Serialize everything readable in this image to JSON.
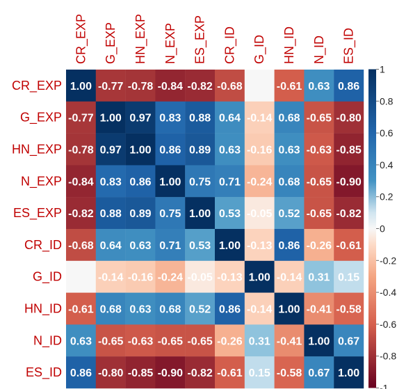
{
  "chart_data": {
    "type": "heatmap",
    "title": "",
    "subtitle": "",
    "xlabel": "",
    "ylabel": "",
    "variables": [
      "CR_EXP",
      "G_EXP",
      "HN_EXP",
      "N_EXP",
      "ES_EXP",
      "CR_ID",
      "G_ID",
      "HN_ID",
      "N_ID",
      "ES_ID"
    ],
    "matrix": [
      [
        1.0,
        -0.77,
        -0.78,
        -0.84,
        -0.82,
        -0.68,
        0.0,
        -0.61,
        0.63,
        0.86
      ],
      [
        -0.77,
        1.0,
        0.97,
        0.83,
        0.88,
        0.64,
        -0.14,
        0.68,
        -0.65,
        -0.8
      ],
      [
        -0.78,
        0.97,
        1.0,
        0.86,
        0.89,
        0.63,
        -0.16,
        0.63,
        -0.63,
        -0.85
      ],
      [
        -0.84,
        0.83,
        0.86,
        1.0,
        0.75,
        0.71,
        -0.24,
        0.68,
        -0.65,
        -0.9
      ],
      [
        -0.82,
        0.88,
        0.89,
        0.75,
        1.0,
        0.53,
        -0.05,
        0.52,
        -0.65,
        -0.82
      ],
      [
        -0.68,
        0.64,
        0.63,
        0.71,
        0.53,
        1.0,
        -0.13,
        0.86,
        -0.26,
        -0.61
      ],
      [
        0.0,
        -0.14,
        -0.16,
        -0.24,
        -0.05,
        -0.13,
        1.0,
        -0.14,
        0.31,
        0.15
      ],
      [
        -0.61,
        0.68,
        0.63,
        0.68,
        0.52,
        0.86,
        -0.14,
        1.0,
        -0.41,
        -0.58
      ],
      [
        0.63,
        -0.65,
        -0.63,
        -0.65,
        -0.65,
        -0.26,
        0.31,
        -0.41,
        1.0,
        0.67
      ],
      [
        0.86,
        -0.8,
        -0.85,
        -0.9,
        -0.82,
        -0.61,
        0.15,
        -0.58,
        0.67,
        1.0
      ]
    ],
    "hidden_label_cells": [
      [
        0,
        6
      ],
      [
        6,
        0
      ]
    ],
    "colorbar": {
      "range": [
        -1,
        1
      ],
      "ticks": [
        "1",
        "0.8",
        "0.6",
        "0.4",
        "0.2",
        "0",
        "-0.2",
        "-0.4",
        "-0.6",
        "-0.8",
        "-1"
      ],
      "tick_values": [
        1,
        0.8,
        0.6,
        0.4,
        0.2,
        0,
        -0.2,
        -0.4,
        -0.6,
        -0.8,
        -1
      ]
    },
    "colors": {
      "negative_end": "#67001F",
      "neutral": "#F7F7F7",
      "positive_end": "#053061",
      "axis_label": "#C00000",
      "cell_text": "#FFFFFF"
    },
    "grid": "off",
    "legend": "right"
  }
}
